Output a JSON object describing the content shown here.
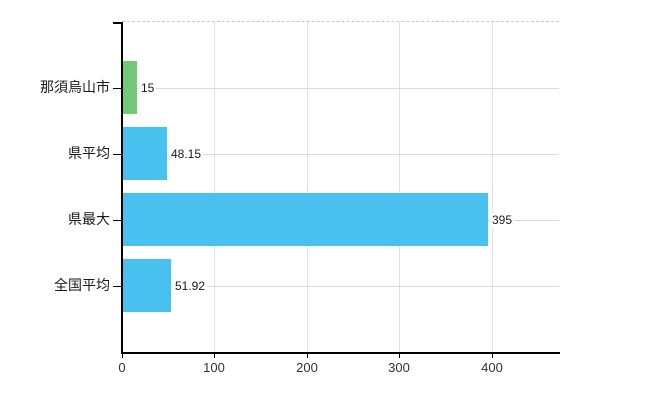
{
  "chart_data": {
    "type": "bar",
    "orientation": "horizontal",
    "title": "",
    "categories": [
      "那須烏山市",
      "県平均",
      "県最大",
      "全国平均"
    ],
    "values": [
      15,
      48.15,
      395,
      51.92
    ],
    "value_labels": [
      "15",
      "48.15",
      "395",
      "51.92"
    ],
    "bar_colors": [
      "#74c878",
      "#48c1ef",
      "#48c1ef",
      "#48c1ef"
    ],
    "x_ticks": [
      "0",
      "100",
      "200",
      "300",
      "400"
    ],
    "x_tick_values": [
      0,
      100,
      200,
      300,
      400
    ],
    "xlim": [
      0,
      473
    ],
    "grid": true,
    "legend": false,
    "colors": {
      "background": "#ffffff",
      "axis": "#000000",
      "vertical_gridline": "#dfe3df",
      "row_gridline": "#d8dcd8",
      "top_border": "#c9c9c9",
      "category_label": "#1a1a1a",
      "value_label": "#1a1a1a",
      "tick_label": "#333333"
    }
  }
}
